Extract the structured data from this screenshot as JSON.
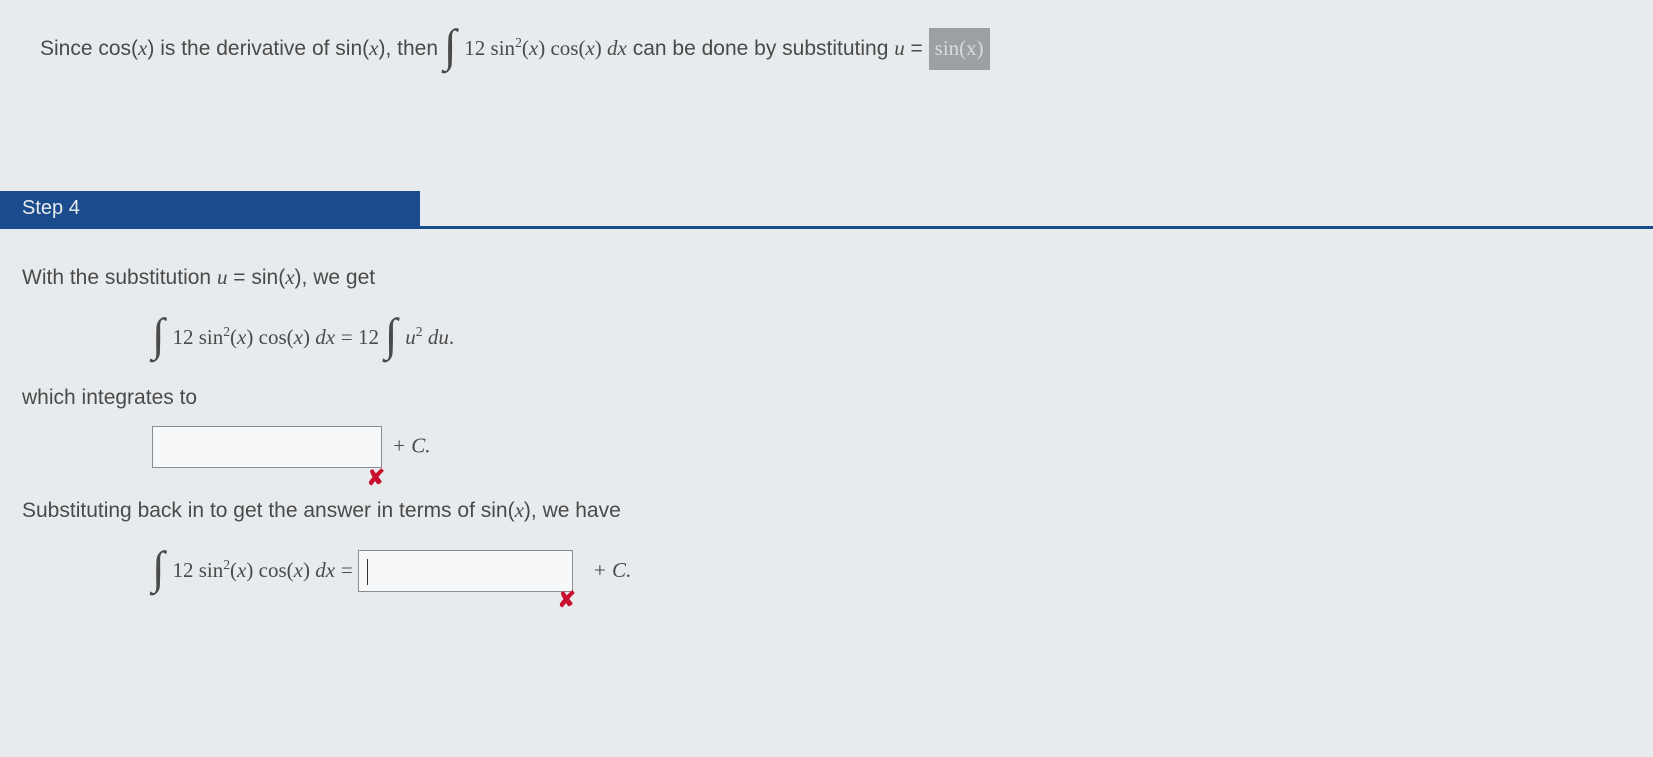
{
  "top": {
    "prefix": "Since cos(",
    "var1": "x",
    "mid1": ") is the derivative of sin(",
    "var2": "x",
    "mid2": "), then ",
    "coef": "12",
    "int_body_a": " sin",
    "sq": "2",
    "int_body_b": "(",
    "int_body_c": ") cos(",
    "int_body_d": ") ",
    "dx": "dx",
    "tail": " can be done by substituting ",
    "u": "u",
    "eq": " = ",
    "pill": "sin(x)"
  },
  "step_label": "Step 4",
  "s4": {
    "line1_a": "With the substitution ",
    "line1_u": "u",
    "line1_b": " = sin(",
    "line1_x": "x",
    "line1_c": "), we get",
    "eq1_coef_left": "12",
    "eq1_sin": " sin",
    "sq": "2",
    "eq1_paren_open": "(",
    "eq1_x": "x",
    "eq1_paren_close": ") cos(",
    "eq1_x2": "x",
    "eq1_close2": ") ",
    "dx": "dx",
    "eq": " = ",
    "eq1_coef_right": "12",
    "eq1_u": "u",
    "eq1_du": " du",
    "period": ".",
    "line2": "which integrates to",
    "plusC": " + C.",
    "line3": "Substituting back in to get the answer in terms of sin(",
    "line3x": "x",
    "line3b": "), we have",
    "eq2_coef": "12",
    "eq2_sin": " sin",
    "eq2_paren": "(",
    "eq2_close": ") cos(",
    "eq2_close2": ") ",
    "plusC2": " + C."
  },
  "colors": {
    "banner": "#1a4b8c",
    "bg": "#e8ebed",
    "error": "#c8102e",
    "pill_bg": "#9aa0a3"
  }
}
